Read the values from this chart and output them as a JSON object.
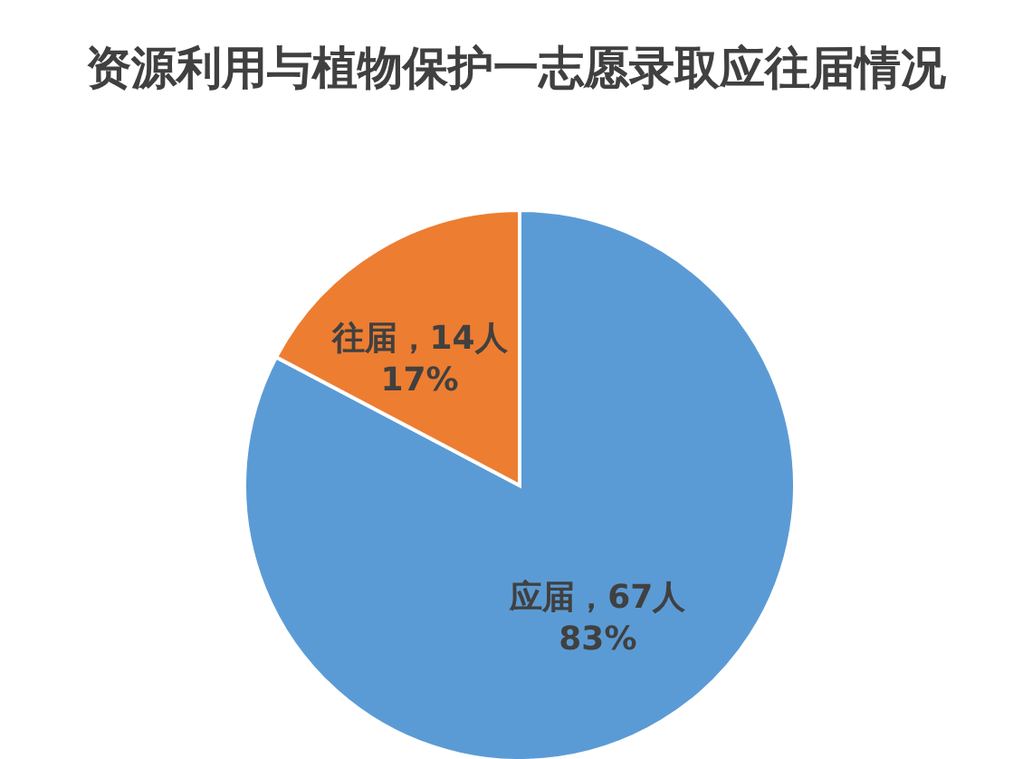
{
  "chart_data": {
    "type": "pie",
    "title": "资源利用与植物保护一志愿录取应往届情况",
    "categories": [
      "应届",
      "往届"
    ],
    "values": [
      67,
      14
    ],
    "colors": [
      "#5b9bd5",
      "#ed7d31"
    ],
    "value_labels": [
      "，67人\n83%",
      "，14人\n17%"
    ],
    "legend": false
  }
}
